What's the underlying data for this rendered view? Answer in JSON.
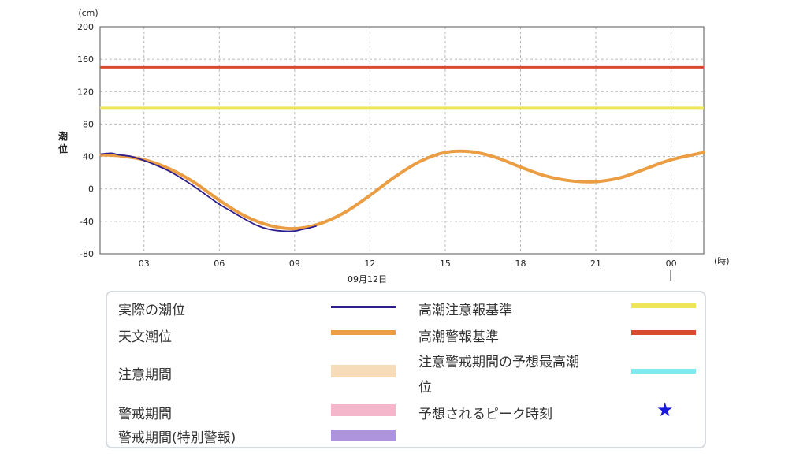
{
  "chart_data": {
    "type": "line",
    "y_unit": "(cm)",
    "x_unit": "(時)",
    "ylabel": "潮位",
    "date_label": "09月12日",
    "ylim": [
      -80,
      200
    ],
    "y_ticks": [
      -80,
      -40,
      0,
      40,
      80,
      120,
      160,
      200
    ],
    "xlim_hours": [
      1.25,
      25.3
    ],
    "x_ticks": [
      {
        "hour": 3,
        "label": "03"
      },
      {
        "hour": 6,
        "label": "06"
      },
      {
        "hour": 9,
        "label": "09"
      },
      {
        "hour": 12,
        "label": "12"
      },
      {
        "hour": 15,
        "label": "15"
      },
      {
        "hour": 18,
        "label": "18"
      },
      {
        "hour": 21,
        "label": "21"
      },
      {
        "hour": 24,
        "label": "00"
      }
    ],
    "grid": true,
    "reference_lines": [
      {
        "name": "高潮注意報基準",
        "value": 100,
        "color": "#eee55a"
      },
      {
        "name": "高潮警報基準",
        "value": 150,
        "color": "#d94b31"
      }
    ],
    "series": [
      {
        "name": "天文潮位",
        "color": "#ea9d42",
        "x": [
          1.3,
          2,
          3,
          4,
          5,
          6,
          7,
          8,
          9,
          10,
          11,
          12,
          13,
          14,
          15,
          16,
          17,
          18,
          19,
          20,
          21,
          22,
          23,
          24,
          25.3
        ],
        "y": [
          42,
          41,
          36,
          25,
          8,
          -14,
          -33,
          -45,
          -49,
          -43,
          -29,
          -8,
          15,
          34,
          45,
          46,
          39,
          27,
          16,
          10,
          9,
          14,
          25,
          36,
          45
        ]
      },
      {
        "name": "実際の潮位",
        "color": "#2e1d8c",
        "x": [
          1.3,
          1.7,
          2,
          2.5,
          3,
          3.5,
          4,
          4.5,
          5,
          5.5,
          6,
          6.5,
          7,
          7.5,
          8,
          8.5,
          9,
          9.3,
          9.6,
          9.85
        ],
        "y": [
          43,
          44,
          42,
          40,
          35,
          29,
          22,
          13,
          3,
          -8,
          -19,
          -28,
          -37,
          -45,
          -50,
          -52,
          -52,
          -50,
          -48,
          -46
        ]
      }
    ]
  },
  "legend": {
    "actual": "実際の潮位",
    "astro": "天文潮位",
    "caution_period": "注意期間",
    "warning_period": "警戒期間",
    "special_warning_period": "警戒期間(特別警報)",
    "advisory_std": "高潮注意報基準",
    "warning_std": "高潮警報基準",
    "predicted_max_line1": "注意警戒期間の予想最高潮",
    "predicted_max_line2": "位",
    "peak_time": "予想されるピーク時刻",
    "colors": {
      "actual": "#2e1d8c",
      "astro": "#ea9d42",
      "caution": "#f7dcb9",
      "warning": "#f3b6cb",
      "special": "#ad94dc",
      "advisory": "#eee55a",
      "warning_std": "#d94b31",
      "predicted": "#7eeaf0",
      "star": "#1a1adf"
    },
    "star_icon": "star-icon"
  }
}
